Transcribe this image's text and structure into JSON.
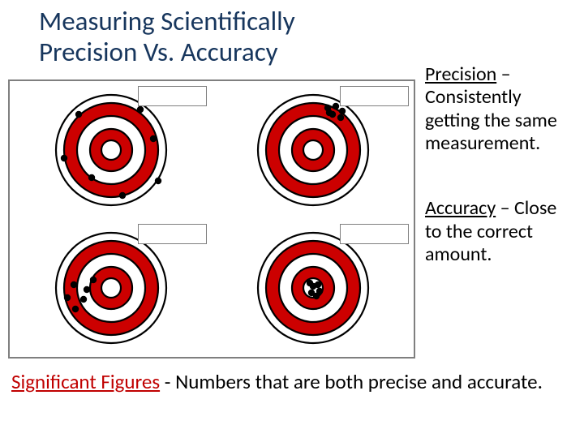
{
  "title": {
    "line1": "Measuring Scientifically",
    "line2": "Precision Vs. Accuracy",
    "color": "#17365d",
    "fontsize": 33
  },
  "definitions": {
    "precision": {
      "term": "Precision",
      "dash": " – ",
      "text": "Consistently getting the same measurement."
    },
    "accuracy": {
      "term": "Accuracy",
      "dash": " – ",
      "text": "Close to the correct amount."
    },
    "fontsize": 24
  },
  "sigfig": {
    "term": "Significant Figures",
    "sep": " - ",
    "text": "Numbers that are both precise and accurate.",
    "term_color": "#c00000",
    "fontsize": 25
  },
  "targets": {
    "panel_border": "#7f7f7f",
    "ring_colors": {
      "outer_stroke": "#000000",
      "red": "#cc0000",
      "white": "#ffffff",
      "dot": "#000000"
    },
    "ring_radii": [
      68,
      58,
      42,
      26,
      12
    ],
    "stroke_width": 2.2,
    "cells": [
      {
        "id": "low-accuracy-low-precision",
        "points": [
          [
            -40,
            -44
          ],
          [
            36,
            -50
          ],
          [
            -58,
            10
          ],
          [
            52,
            -14
          ],
          [
            -24,
            34
          ],
          [
            14,
            56
          ],
          [
            58,
            38
          ]
        ]
      },
      {
        "id": "low-accuracy-high-precision",
        "points": [
          [
            18,
            -52
          ],
          [
            28,
            -54
          ],
          [
            36,
            -48
          ],
          [
            24,
            -44
          ],
          [
            34,
            -40
          ],
          [
            20,
            -46
          ]
        ]
      },
      {
        "id": "high-accuracy-low-precision",
        "points": [
          [
            -46,
            -4
          ],
          [
            -34,
            14
          ],
          [
            -22,
            -10
          ],
          [
            -44,
            26
          ],
          [
            -54,
            12
          ],
          [
            -30,
            2
          ]
        ]
      },
      {
        "id": "high-accuracy-high-precision",
        "points": [
          [
            -4,
            -6
          ],
          [
            6,
            -4
          ],
          [
            -2,
            6
          ],
          [
            8,
            4
          ],
          [
            0,
            -2
          ],
          [
            4,
            10
          ]
        ]
      }
    ],
    "dot_radius": 4.2,
    "label_box": {
      "w": 85,
      "h": 25,
      "border": "#7f7f7f",
      "bg": "#ffffff"
    }
  }
}
